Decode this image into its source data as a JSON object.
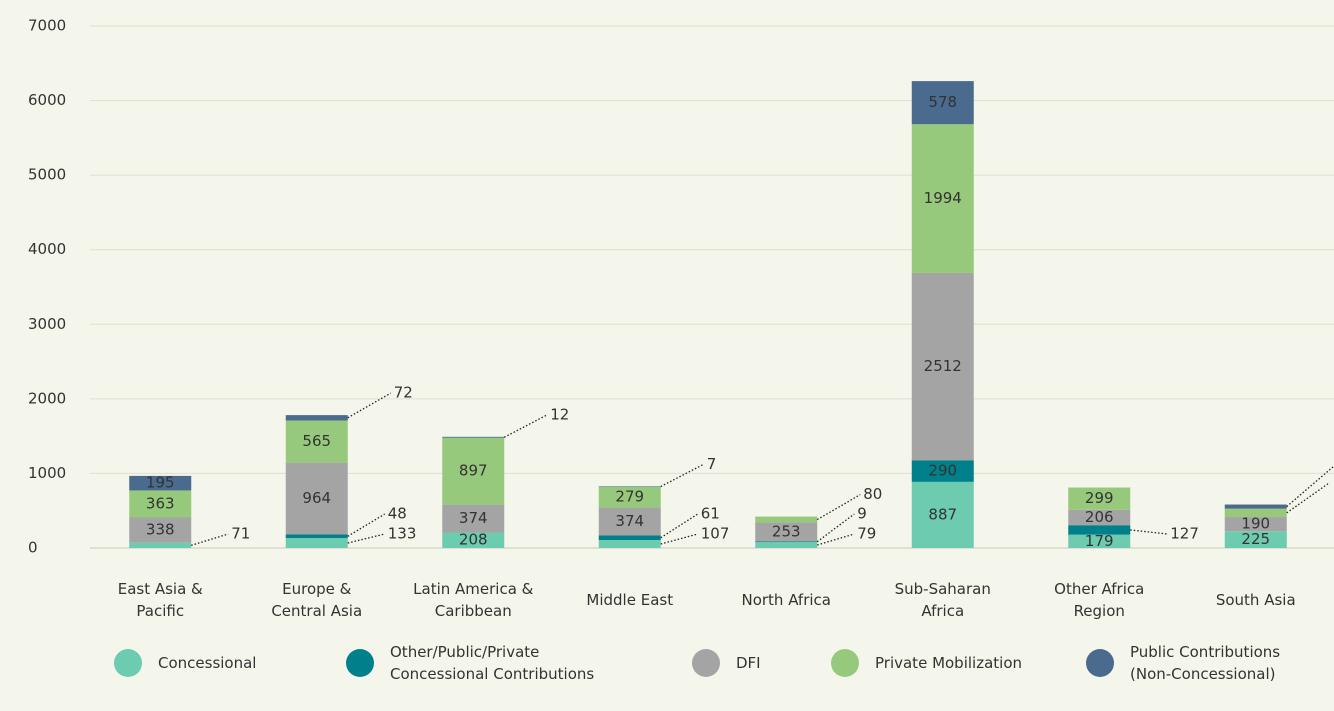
{
  "chart_data": {
    "type": "stacked-bar",
    "categories": [
      "East Asia & Pacific",
      "Europe & Central Asia",
      "Latin America & Caribbean",
      "Middle East",
      "North Africa",
      "Sub-Saharan Africa",
      "Other Africa Region",
      "South Asia"
    ],
    "series": [
      {
        "name": "Concessional",
        "color": "#6dcbb0",
        "values": [
          71,
          133,
          208,
          107,
          79,
          887,
          179,
          225
        ]
      },
      {
        "name": "Other/Public/Private Concessional Contributions",
        "color": "#00808a",
        "values": [
          null,
          48,
          null,
          61,
          9,
          290,
          127,
          null
        ]
      },
      {
        "name": "DFI",
        "color": "#a4a4a4",
        "values": [
          338,
          964,
          374,
          374,
          253,
          2512,
          206,
          190
        ]
      },
      {
        "name": "Private Mobilization",
        "color": "#96c97b",
        "values": [
          363,
          565,
          897,
          279,
          80,
          1994,
          299,
          113
        ]
      },
      {
        "name": "Public Contributions (Non-Concessional)",
        "color": "#4a6a8e",
        "values": [
          195,
          72,
          12,
          7,
          null,
          578,
          null,
          55
        ]
      }
    ],
    "ylim": [
      0,
      7000
    ],
    "yticks": [
      0,
      1000,
      2000,
      3000,
      4000,
      5000,
      6000,
      7000
    ],
    "grid": true
  }
}
